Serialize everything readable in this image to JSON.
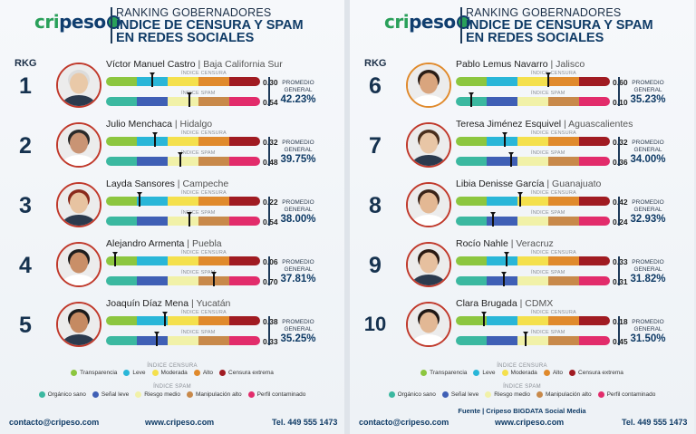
{
  "brand": {
    "logo_a": "cri",
    "logo_b": "peso"
  },
  "title": {
    "line1": "RANKING GOBERNADORES",
    "line2": "ÍNDICE DE CENSURA Y SPAM",
    "line3": "EN REDES SOCIALES"
  },
  "rkg_label": "RKG",
  "labels": {
    "censura": "ÍNDICE CENSURA",
    "spam": "ÍNDICE SPAM",
    "promedio_1": "PROMEDIO",
    "promedio_2": "GENERAL"
  },
  "colors": {
    "censura": [
      "#8cc63f",
      "#29b6d8",
      "#f4e04d",
      "#e08a2c",
      "#a01b22"
    ],
    "spam": [
      "#3bb8a0",
      "#3f5fb5",
      "#f1f1a8",
      "#c8894a",
      "#e22c6b"
    ]
  },
  "left": [
    {
      "rank": "1",
      "name": "Víctor Manuel Castro",
      "state": "Baja California Sur",
      "censura": 0.3,
      "spam": 0.54,
      "censura_text": "0.30",
      "spam_text": "0.54",
      "promedio": "42.23%"
    },
    {
      "rank": "2",
      "name": "Julio Menchaca",
      "state": "Hidalgo",
      "censura": 0.32,
      "spam": 0.48,
      "censura_text": "0.32",
      "spam_text": "0.48",
      "promedio": "39.75%"
    },
    {
      "rank": "3",
      "name": "Layda Sansores",
      "state": "Campeche",
      "censura": 0.22,
      "spam": 0.54,
      "censura_text": "0.22",
      "spam_text": "0.54",
      "promedio": "38.00%"
    },
    {
      "rank": "4",
      "name": "Alejandro Armenta",
      "state": "Puebla",
      "censura": 0.06,
      "spam": 0.7,
      "censura_text": "0.06",
      "spam_text": "0.70",
      "promedio": "37.81%"
    },
    {
      "rank": "5",
      "name": "Joaquín Díaz Mena",
      "state": "Yucatán",
      "censura": 0.38,
      "spam": 0.33,
      "censura_text": "0.38",
      "spam_text": "0.33",
      "promedio": "35.25%"
    }
  ],
  "right": [
    {
      "rank": "6",
      "name": "Pablo Lemus Navarro",
      "state": "Jalisco",
      "censura": 0.6,
      "spam": 0.1,
      "censura_text": "0.60",
      "spam_text": "0.10",
      "promedio": "35.23%"
    },
    {
      "rank": "7",
      "name": "Teresa Jiménez Esquivel",
      "state": "Aguascalientes",
      "censura": 0.32,
      "spam": 0.36,
      "censura_text": "0.32",
      "spam_text": "0.36",
      "promedio": "34.00%"
    },
    {
      "rank": "8",
      "name": "Libia Denisse García",
      "state": "Guanajuato",
      "censura": 0.42,
      "spam": 0.24,
      "censura_text": "0.42",
      "spam_text": "0.24",
      "promedio": "32.93%"
    },
    {
      "rank": "9",
      "name": "Rocío Nahle",
      "state": "Veracruz",
      "censura": 0.33,
      "spam": 0.31,
      "censura_text": "0.33",
      "spam_text": "0.31",
      "promedio": "31.82%"
    },
    {
      "rank": "10",
      "name": "Clara Brugada",
      "state": "CDMX",
      "censura": 0.18,
      "spam": 0.45,
      "censura_text": "0.18",
      "spam_text": "0.45",
      "promedio": "31.50%"
    }
  ],
  "legend": {
    "censura_title": "ÍNDICE CENSURA",
    "censura_items": [
      "Transparencia",
      "Leve",
      "Moderada",
      "Alto",
      "Censura extrema"
    ],
    "spam_title": "ÍNDICE SPAM",
    "spam_items": [
      "Orgánico sano",
      "Señal leve",
      "Riesgo medio",
      "Manipulación alto",
      "Perfil contaminado"
    ]
  },
  "source": {
    "label": "Fuente",
    "text": "Cripeso BIGDATA Social Media"
  },
  "footer": {
    "email": "contacto@cripeso.com",
    "web": "www.cripeso.com",
    "phone": "Tel. 449 555 1473"
  }
}
